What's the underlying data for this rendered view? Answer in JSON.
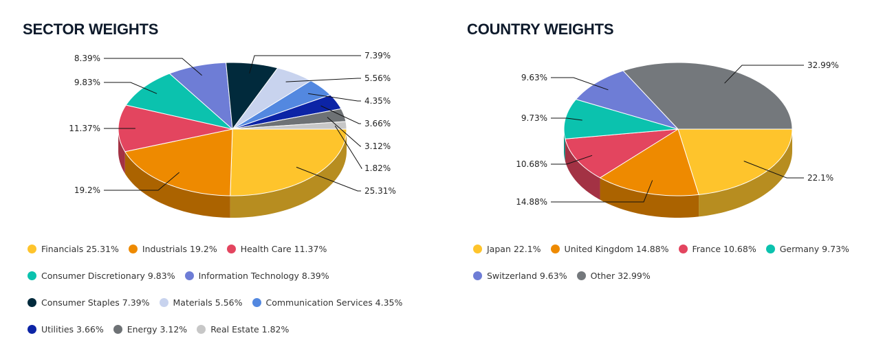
{
  "chart_data": [
    {
      "type": "pie",
      "title": "SECTOR WEIGHTS",
      "slices": [
        {
          "name": "Financials",
          "value": 25.31,
          "label": "25.31%",
          "legend": "Financials 25.31%",
          "color": "#fec42c"
        },
        {
          "name": "Industrials",
          "value": 19.2,
          "label": "19.2%",
          "legend": "Industrials 19.2%",
          "color": "#ee8a00"
        },
        {
          "name": "Health Care",
          "value": 11.37,
          "label": "11.37%",
          "legend": "Health Care 11.37%",
          "color": "#e3455f"
        },
        {
          "name": "Consumer Discretionary",
          "value": 9.83,
          "label": "9.83%",
          "legend": "Consumer Discretionary 9.83%",
          "color": "#0bc2ae"
        },
        {
          "name": "Information Technology",
          "value": 8.39,
          "label": "8.39%",
          "legend": "Information Technology 8.39%",
          "color": "#6e7dd6"
        },
        {
          "name": "Consumer Staples",
          "value": 7.39,
          "label": "7.39%",
          "legend": "Consumer Staples 7.39%",
          "color": "#012a3c"
        },
        {
          "name": "Materials",
          "value": 5.56,
          "label": "5.56%",
          "legend": "Materials 5.56%",
          "color": "#c8d3ee"
        },
        {
          "name": "Communication Services",
          "value": 4.35,
          "label": "4.35%",
          "legend": "Communication Services 4.35%",
          "color": "#5388e0"
        },
        {
          "name": "Utilities",
          "value": 3.66,
          "label": "3.66%",
          "legend": "Utilities 3.66%",
          "color": "#0c24a6"
        },
        {
          "name": "Energy",
          "value": 3.12,
          "label": "3.12%",
          "legend": "Energy 3.12%",
          "color": "#6e7275"
        },
        {
          "name": "Real Estate",
          "value": 1.82,
          "label": "1.82%",
          "legend": "Real Estate 1.82%",
          "color": "#c7c7c7"
        }
      ],
      "legend_rows": [
        3,
        2,
        3,
        3
      ]
    },
    {
      "type": "pie",
      "title": "COUNTRY WEIGHTS",
      "slices": [
        {
          "name": "Japan",
          "value": 22.1,
          "label": "22.1%",
          "legend": "Japan 22.1%",
          "color": "#fec42c"
        },
        {
          "name": "United Kingdom",
          "value": 14.88,
          "label": "14.88%",
          "legend": "United Kingdom 14.88%",
          "color": "#ee8a00"
        },
        {
          "name": "France",
          "value": 10.68,
          "label": "10.68%",
          "legend": "France 10.68%",
          "color": "#e3455f"
        },
        {
          "name": "Germany",
          "value": 9.73,
          "label": "9.73%",
          "legend": "Germany 9.73%",
          "color": "#0bc2ae"
        },
        {
          "name": "Switzerland",
          "value": 9.63,
          "label": "9.63%",
          "legend": "Switzerland 9.63%",
          "color": "#6e7dd6"
        },
        {
          "name": "Other",
          "value": 32.99,
          "label": "32.99%",
          "legend": "Other 32.99%",
          "color": "#74787c"
        }
      ],
      "legend_rows": [
        4,
        2
      ]
    }
  ]
}
